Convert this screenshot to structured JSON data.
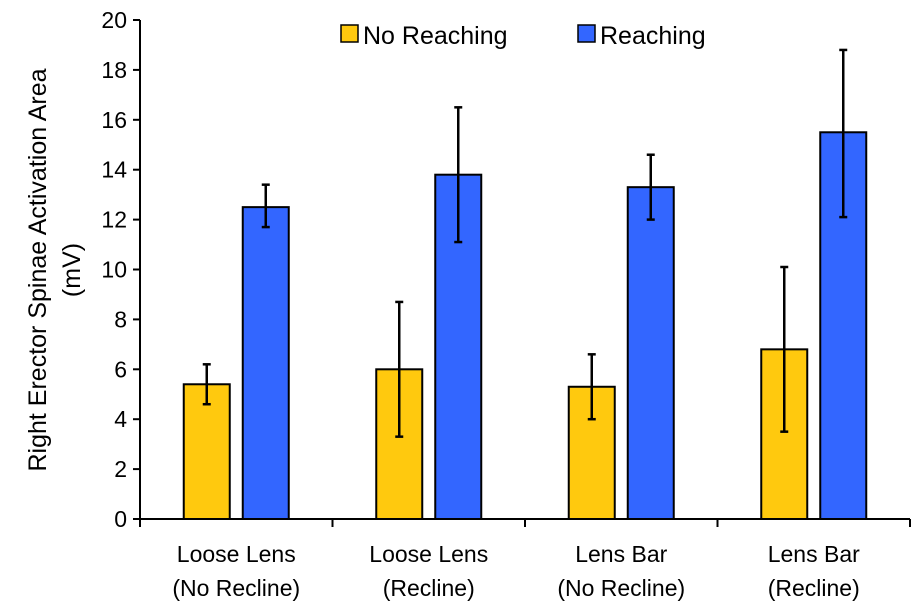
{
  "chart_data": {
    "type": "bar",
    "title": "",
    "xlabel": "",
    "ylabel_lines": [
      "Right Erector Spinae  Activation Area",
      "(mV)"
    ],
    "ylim": [
      0,
      20
    ],
    "yticks": [
      0,
      2,
      4,
      6,
      8,
      10,
      12,
      14,
      16,
      18,
      20
    ],
    "grid": false,
    "legend_position": "top-center",
    "categories": [
      [
        "Loose Lens",
        "(No Recline)"
      ],
      [
        "Loose Lens",
        "(Recline)"
      ],
      [
        "Lens Bar",
        "(No Recline)"
      ],
      [
        "Lens Bar",
        "(Recline)"
      ]
    ],
    "series": [
      {
        "name": "No Reaching",
        "color": "#FFC90E",
        "values": [
          5.4,
          6.0,
          5.3,
          6.8
        ],
        "error_low": [
          4.6,
          3.3,
          4.0,
          3.5
        ],
        "error_high": [
          6.2,
          8.7,
          6.6,
          10.1
        ]
      },
      {
        "name": "Reaching",
        "color": "#3366FF",
        "values": [
          12.5,
          13.8,
          13.3,
          15.5
        ],
        "error_low": [
          11.7,
          11.1,
          12.0,
          12.1
        ],
        "error_high": [
          13.4,
          16.5,
          14.6,
          18.8
        ]
      }
    ]
  }
}
